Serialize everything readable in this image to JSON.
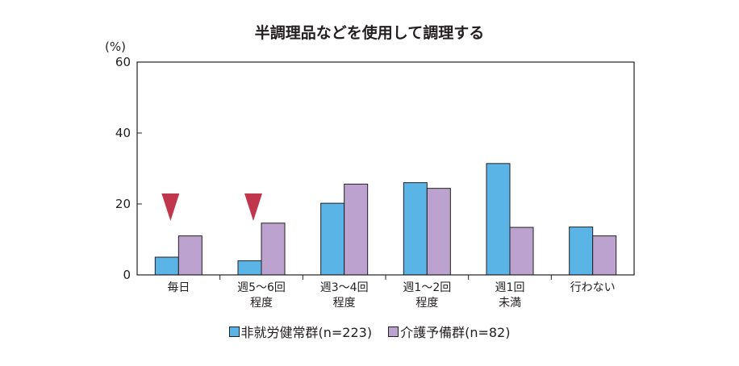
{
  "chart_data": {
    "type": "bar",
    "title": "半調理品などを使用して調理する",
    "y_unit": "(%)",
    "ylim": [
      0,
      60
    ],
    "yticks": [
      0,
      20,
      40,
      60
    ],
    "grid": false,
    "legend_position": "bottom",
    "categories": [
      [
        "毎日"
      ],
      [
        "週5～6回",
        "程度"
      ],
      [
        "週3～4回",
        "程度"
      ],
      [
        "週1～2回",
        "程度"
      ],
      [
        "週1回",
        "未満"
      ],
      [
        "行わない"
      ]
    ],
    "series": [
      {
        "name": "非就労健常群(n=223)",
        "color": "#5ab4e5",
        "values": [
          5.0,
          4.0,
          20.2,
          26.0,
          31.4,
          13.5
        ]
      },
      {
        "name": "介護予備群(n=82)",
        "color": "#bca3cf",
        "values": [
          11.0,
          14.6,
          25.6,
          24.4,
          13.4,
          11.0
        ]
      }
    ],
    "markers": {
      "shape": "triangle-down",
      "color": "#c0364d",
      "category_indices": [
        0,
        1
      ]
    }
  }
}
